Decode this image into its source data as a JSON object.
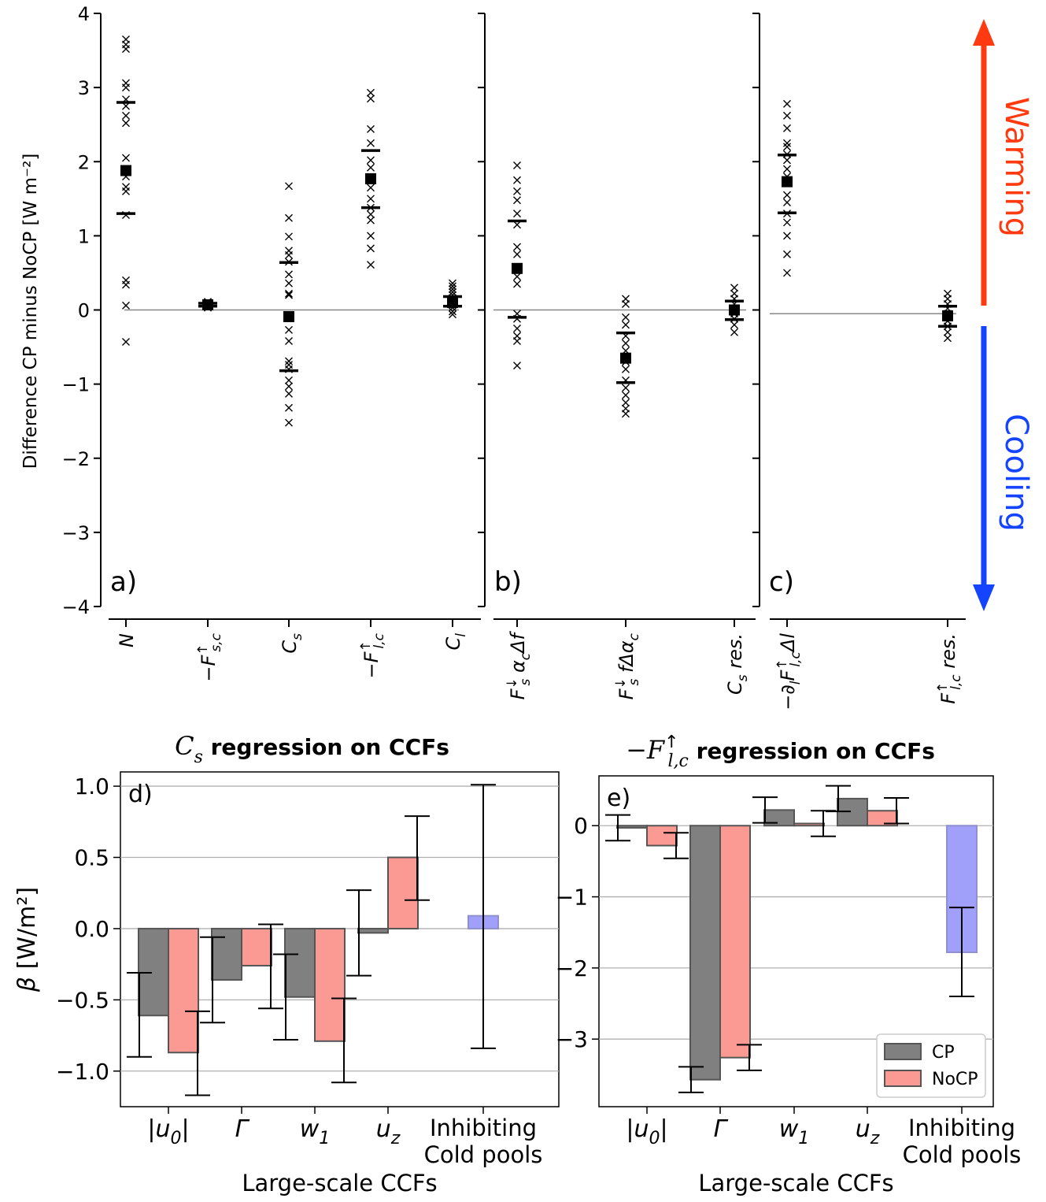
{
  "chart_data": [
    {
      "type": "scatter",
      "panel_label": "a)",
      "ylabel": "Difference CP minus NoCP [W m⁻²]",
      "ylim": [
        -4,
        4
      ],
      "yticks": [
        -4,
        -3,
        -2,
        -1,
        0,
        1,
        2,
        3,
        4
      ],
      "ytick_labels": [
        "−4",
        "−3",
        "−2",
        "−1",
        "0",
        "1",
        "2",
        "3",
        "4"
      ],
      "categories": [
        {
          "id": "N",
          "base": "N",
          "sup": "",
          "sub": "",
          "suffix": "",
          "mean": 1.88,
          "q_low": 1.3,
          "q_high": 2.8,
          "points": [
            3.65,
            3.58,
            3.52,
            3.06,
            3.0,
            2.84,
            2.75,
            2.62,
            2.52,
            2.05,
            1.8,
            1.66,
            1.6,
            1.28,
            0.4,
            0.34,
            0.06,
            -0.43
          ]
        },
        {
          "id": "Fsc",
          "base": "−F",
          "sup": "↑",
          "sub": "s,c",
          "suffix": "",
          "mean": 0.07,
          "q_low": 0.05,
          "q_high": 0.09,
          "points": [
            0.11,
            0.1,
            0.09,
            0.08,
            0.07,
            0.06,
            0.05,
            0.04,
            0.03
          ]
        },
        {
          "id": "Cs",
          "base": "C",
          "sup": "",
          "sub": "s",
          "suffix": "",
          "mean": -0.09,
          "q_low": -0.82,
          "q_high": 0.64,
          "points": [
            1.67,
            1.24,
            0.99,
            0.8,
            0.74,
            0.65,
            0.48,
            0.36,
            0.22,
            0.2,
            -0.27,
            -0.42,
            -0.69,
            -0.74,
            -0.8,
            -0.95,
            -1.03,
            -1.13,
            -1.32,
            -1.52
          ]
        },
        {
          "id": "Flc",
          "base": "−F",
          "sup": "↑",
          "sub": "l,c",
          "suffix": "",
          "mean": 1.77,
          "q_low": 1.38,
          "q_high": 2.15,
          "points": [
            2.93,
            2.85,
            2.44,
            2.25,
            2.02,
            1.92,
            1.75,
            1.65,
            1.5,
            1.38,
            1.29,
            1.21,
            1.0,
            0.83,
            0.61
          ]
        },
        {
          "id": "Cl",
          "base": "C",
          "sup": "",
          "sub": "l",
          "suffix": "",
          "mean": 0.1,
          "q_low": 0.05,
          "q_high": 0.18,
          "points": [
            0.36,
            0.32,
            0.28,
            0.24,
            0.2,
            0.16,
            0.12,
            0.08,
            0.03,
            -0.02,
            -0.06
          ]
        }
      ]
    },
    {
      "type": "scatter",
      "panel_label": "b)",
      "ylim": [
        -4,
        4
      ],
      "categories": [
        {
          "id": "alpha_df",
          "base": "F",
          "sup": "↓",
          "sub": "s",
          "suffix": " α",
          "suffix_sub": "c",
          "suffix2": "Δf",
          "mean": 0.56,
          "q_low": -0.1,
          "q_high": 1.2,
          "points": [
            1.95,
            1.75,
            1.6,
            1.48,
            1.3,
            1.15,
            0.85,
            0.75,
            0.45,
            0.35,
            -0.05,
            -0.12,
            -0.25,
            -0.35,
            -0.42,
            -0.75
          ]
        },
        {
          "id": "f_dalpha",
          "base": "F",
          "sup": "↓",
          "sub": "s",
          "suffix": " fΔα",
          "suffix_sub": "c",
          "suffix2": "",
          "mean": -0.65,
          "q_low": -0.98,
          "q_high": -0.31,
          "points": [
            0.15,
            0.08,
            -0.1,
            -0.2,
            -0.35,
            -0.45,
            -0.55,
            -0.7,
            -0.8,
            -0.95,
            -1.05,
            -1.15,
            -1.25,
            -1.33,
            -1.4
          ]
        },
        {
          "id": "Cs_res",
          "base": "C",
          "sup": "",
          "sub": "s",
          "suffix": " res.",
          "suffix_sub": "",
          "suffix2": "",
          "mean": 0.0,
          "q_low": -0.13,
          "q_high": 0.12,
          "points": [
            0.3,
            0.22,
            0.15,
            0.08,
            0.02,
            -0.05,
            -0.12,
            -0.2,
            -0.3
          ]
        }
      ]
    },
    {
      "type": "scatter",
      "panel_label": "c)",
      "ylim": [
        -4,
        4
      ],
      "categories": [
        {
          "id": "dl",
          "base": "−∂",
          "bsub": "l",
          "mid": "F",
          "sup": "↑",
          "sub": "l,c",
          "suffix": "Δl",
          "mean": 1.73,
          "q_low": 1.31,
          "q_high": 2.09,
          "points": [
            2.78,
            2.62,
            2.45,
            2.25,
            2.2,
            2.1,
            2.02,
            1.9,
            1.8,
            1.55,
            1.45,
            1.3,
            1.18,
            1.0,
            0.75,
            0.5
          ]
        },
        {
          "id": "Flc_res",
          "base": "F",
          "sup": "↑",
          "sub": "l,c",
          "suffix": " res.",
          "mean": -0.08,
          "q_low": -0.22,
          "q_high": 0.05,
          "points": [
            0.22,
            0.15,
            0.08,
            0.02,
            -0.05,
            -0.1,
            -0.15,
            -0.22,
            -0.3,
            -0.38
          ]
        }
      ]
    },
    {
      "type": "bar",
      "panel_label": "d)",
      "title": "regression on CCFs",
      "title_var": {
        "base": "C",
        "sub": "s",
        "sup": ""
      },
      "xlabel": "Large-scale CCFs",
      "ylabel": "β [W/m²]",
      "ylim": [
        -1.25,
        1.1
      ],
      "yticks": [
        -1.0,
        -0.5,
        0.0,
        0.5,
        1.0
      ],
      "ytick_labels": [
        "−1.0",
        "−0.5",
        "0.0",
        "0.5",
        "1.0"
      ],
      "categories": [
        {
          "base": "|u",
          "sub": "0",
          "tail": "|"
        },
        {
          "base": "Γ",
          "sub": "",
          "tail": ""
        },
        {
          "base": "w",
          "sub": "1",
          "tail": ""
        },
        {
          "base": "u",
          "sub": "z",
          "tail": ""
        },
        {
          "line1": "Inhibiting",
          "line2": "Cold pools"
        }
      ],
      "series": [
        {
          "name": "CP",
          "values": [
            -0.61,
            -0.36,
            -0.48,
            -0.03,
            null
          ],
          "err_low": [
            -0.9,
            -0.66,
            -0.78,
            -0.33,
            null
          ],
          "err_high": [
            -0.31,
            -0.06,
            -0.18,
            0.27,
            null
          ]
        },
        {
          "name": "NoCP",
          "values": [
            -0.87,
            -0.26,
            -0.79,
            0.5,
            null
          ],
          "err_low": [
            -1.17,
            -0.56,
            -1.08,
            0.2,
            null
          ],
          "err_high": [
            -0.58,
            0.03,
            -0.49,
            0.79,
            null
          ]
        },
        {
          "name": "Cold pools",
          "values": [
            null,
            null,
            null,
            null,
            0.09
          ],
          "err_low": [
            null,
            null,
            null,
            null,
            -0.84
          ],
          "err_high": [
            null,
            null,
            null,
            null,
            1.01
          ]
        }
      ]
    },
    {
      "type": "bar",
      "panel_label": "e)",
      "title": "regression on CCFs",
      "title_var": {
        "base": "−F",
        "sub": "l,c",
        "sup": "↑"
      },
      "xlabel": "Large-scale CCFs",
      "ylim": [
        -3.95,
        0.7
      ],
      "yticks": [
        -3,
        -2,
        -1,
        0
      ],
      "ytick_labels": [
        "−3",
        "−2",
        "−1",
        "0"
      ],
      "categories": [
        {
          "base": "|u",
          "sub": "0",
          "tail": "|"
        },
        {
          "base": "Γ",
          "sub": "",
          "tail": ""
        },
        {
          "base": "w",
          "sub": "1",
          "tail": ""
        },
        {
          "base": "u",
          "sub": "z",
          "tail": ""
        },
        {
          "line1": "Inhibiting",
          "line2": "Cold pools"
        }
      ],
      "series": [
        {
          "name": "CP",
          "values": [
            -0.03,
            -3.57,
            0.22,
            0.38,
            null
          ],
          "err_low": [
            -0.21,
            -3.75,
            0.04,
            0.2,
            null
          ],
          "err_high": [
            0.15,
            -3.39,
            0.4,
            0.56,
            null
          ]
        },
        {
          "name": "NoCP",
          "values": [
            -0.28,
            -3.26,
            0.03,
            0.21,
            null
          ],
          "err_low": [
            -0.46,
            -3.44,
            -0.15,
            0.03,
            null
          ],
          "err_high": [
            -0.1,
            -3.08,
            0.21,
            0.39,
            null
          ]
        },
        {
          "name": "Cold pools",
          "values": [
            null,
            null,
            null,
            null,
            -1.78
          ],
          "err_low": [
            null,
            null,
            null,
            null,
            -2.4
          ],
          "err_high": [
            null,
            null,
            null,
            null,
            -1.15
          ]
        }
      ],
      "legend": {
        "position": "lower-right",
        "entries": [
          "CP",
          "NoCP"
        ]
      }
    }
  ],
  "arrows": {
    "warming_label": "Warming",
    "cooling_label": "Cooling",
    "warming_color": "#ff3a10",
    "cooling_color": "#1444ff"
  },
  "colors": {
    "CP": "#808080",
    "NoCP": "#fa9a92",
    "ColdPools": "#a0a0fa",
    "grid": "#b0b0b0"
  }
}
